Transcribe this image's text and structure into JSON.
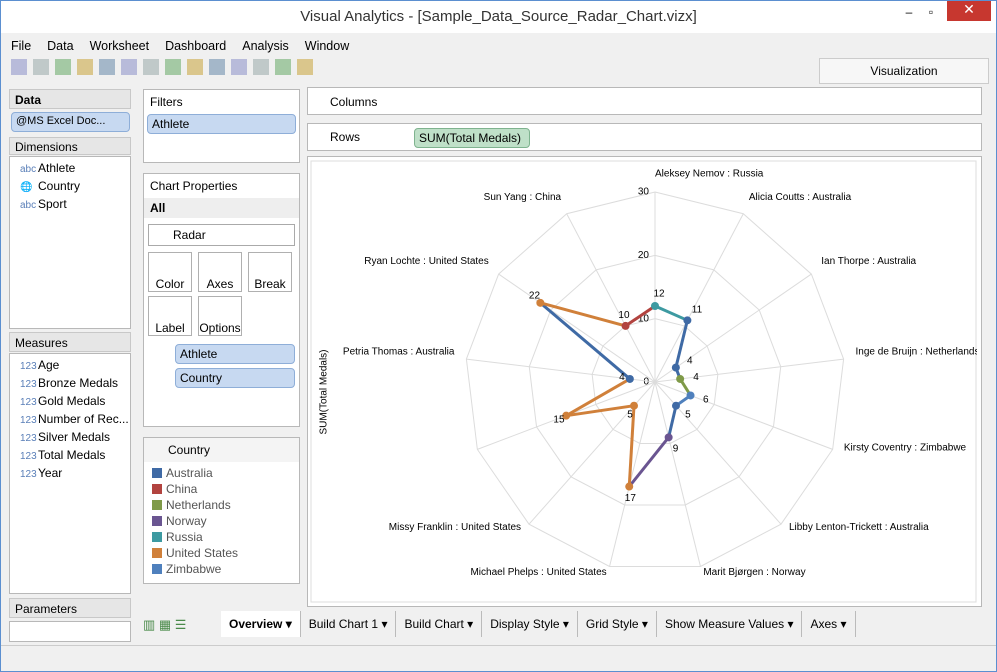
{
  "window": {
    "title": "Visual Analytics - [Sample_Data_Source_Radar_Chart.vizx]"
  },
  "menu": [
    "File",
    "Data",
    "Worksheet",
    "Dashboard",
    "Analysis",
    "Window"
  ],
  "visualization_tab": "Visualization",
  "data_panel": {
    "header": "Data",
    "source": "@MS Excel Doc...",
    "dimensions_header": "Dimensions",
    "dimensions": [
      {
        "icon": "abc",
        "label": "Athlete"
      },
      {
        "icon": "🌐",
        "label": "Country"
      },
      {
        "icon": "abc",
        "label": "Sport"
      }
    ],
    "measures_header": "Measures",
    "measures": [
      {
        "icon": "123",
        "label": "Age"
      },
      {
        "icon": "123",
        "label": "Bronze Medals"
      },
      {
        "icon": "123",
        "label": "Gold Medals"
      },
      {
        "icon": "123",
        "label": "Number of Rec..."
      },
      {
        "icon": "123",
        "label": "Silver Medals"
      },
      {
        "icon": "123",
        "label": "Total Medals"
      },
      {
        "icon": "123",
        "label": "Year"
      }
    ],
    "parameters_header": "Parameters"
  },
  "filters": {
    "header": "Filters",
    "items": [
      "Athlete"
    ]
  },
  "chart_properties": {
    "header": "Chart Properties",
    "scope": "All",
    "chart_type": "Radar",
    "buttons": [
      "Color",
      "Axes",
      "Break",
      "Label",
      "Options"
    ],
    "marks": [
      "Athlete",
      "Country"
    ]
  },
  "legend_panel": {
    "header": "Country",
    "items": [
      {
        "name": "Australia",
        "color": "#3f6aa5"
      },
      {
        "name": "China",
        "color": "#b2433f"
      },
      {
        "name": "Netherlands",
        "color": "#7f9a48"
      },
      {
        "name": "Norway",
        "color": "#6a5591"
      },
      {
        "name": "Russia",
        "color": "#3d9aa1"
      },
      {
        "name": "United States",
        "color": "#d0803a"
      },
      {
        "name": "Zimbabwe",
        "color": "#4f80bd"
      }
    ]
  },
  "shelves": {
    "columns": "Columns",
    "rows": "Rows",
    "rows_pill": "SUM(Total Medals)"
  },
  "tabs": [
    "Overview",
    "Build Chart 1",
    "Build Chart",
    "Display Style",
    "Grid Style",
    "Show Measure Values",
    "Axes"
  ],
  "chart_data": {
    "type": "radar",
    "y_label": "SUM(Total Medals)",
    "categories": [
      "Aleksey Nemov : Russia",
      "Alicia Coutts : Australia",
      "Ian Thorpe : Australia",
      "Inge de Bruijn : Netherlands",
      "Kirsty Coventry : Zimbabwe",
      "Libby Lenton-Trickett : Australia",
      "Marit Bjørgen : Norway",
      "Michael Phelps : United States",
      "Missy Franklin : United States",
      null,
      "Petria Thomas : Australia",
      "Ryan Lochte : United States",
      "Sun Yang : China"
    ],
    "values": [
      12,
      11,
      4,
      4,
      6,
      5,
      9,
      17,
      5,
      15,
      4,
      22,
      10
    ],
    "point_colors": [
      "#3d9aa1",
      "#3f6aa5",
      "#3f6aa5",
      "#7f9a48",
      "#4f80bd",
      "#3f6aa5",
      "#6a5591",
      "#d0803a",
      "#d0803a",
      "#d0803a",
      "#3f6aa5",
      "#d0803a",
      "#b2433f"
    ],
    "ylim": [
      0,
      30
    ],
    "yticks": [
      0,
      10,
      20,
      30
    ],
    "grid": true
  }
}
